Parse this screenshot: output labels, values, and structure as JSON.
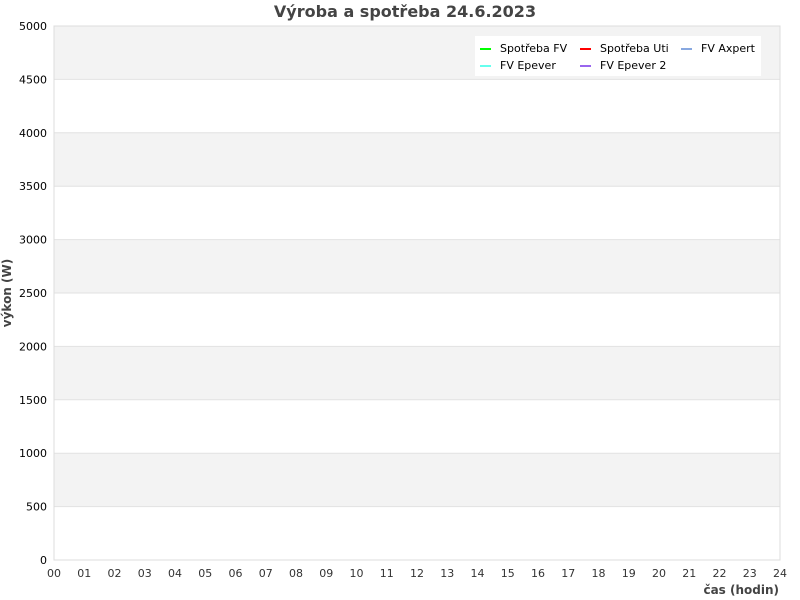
{
  "chart_data": {
    "type": "line",
    "title": "Výroba a spotřeba 24.6.2023",
    "xlabel": "čas (hodin)",
    "ylabel": "výkon (W)",
    "xlim": [
      0,
      24
    ],
    "ylim": [
      0,
      5000
    ],
    "x_ticks": [
      "00",
      "01",
      "02",
      "03",
      "04",
      "05",
      "06",
      "07",
      "08",
      "09",
      "10",
      "11",
      "12",
      "13",
      "14",
      "15",
      "16",
      "17",
      "18",
      "19",
      "20",
      "21",
      "22",
      "23",
      "24"
    ],
    "y_ticks": [
      "0",
      "500",
      "1000",
      "1500",
      "2000",
      "2500",
      "3000",
      "3500",
      "4000",
      "4500",
      "5000"
    ],
    "grid": true,
    "band_colors": [
      "#ffffff",
      "#f3f3f3"
    ],
    "legend_placement": "top-right",
    "series": [
      {
        "name": "Spotřeba FV",
        "color": "#00ff00",
        "values": []
      },
      {
        "name": "Spotřeba Uti",
        "color": "#ff0000",
        "values": []
      },
      {
        "name": "FV Axpert",
        "color": "#88a8e0",
        "values": []
      },
      {
        "name": "FV Epever",
        "color": "#66ffee",
        "values": []
      },
      {
        "name": "FV Epever 2",
        "color": "#9966ee",
        "values": []
      }
    ]
  }
}
